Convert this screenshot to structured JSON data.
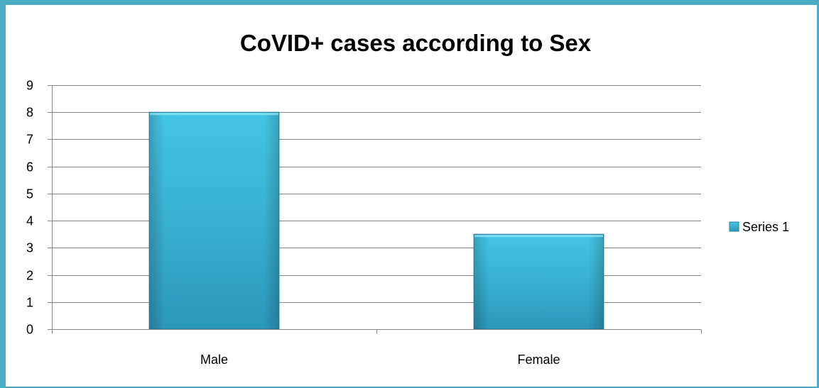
{
  "chart_data": {
    "type": "bar",
    "title": "CoVID+ cases according to Sex",
    "categories": [
      "Male",
      "Female"
    ],
    "series": [
      {
        "name": "Series 1",
        "values": [
          8,
          3.5
        ],
        "color": "#31b5d6"
      }
    ],
    "ylim": [
      0,
      9
    ],
    "yticks": [
      0,
      1,
      2,
      3,
      4,
      5,
      6,
      7,
      8,
      9
    ],
    "grid": true,
    "legend_position": "right"
  }
}
